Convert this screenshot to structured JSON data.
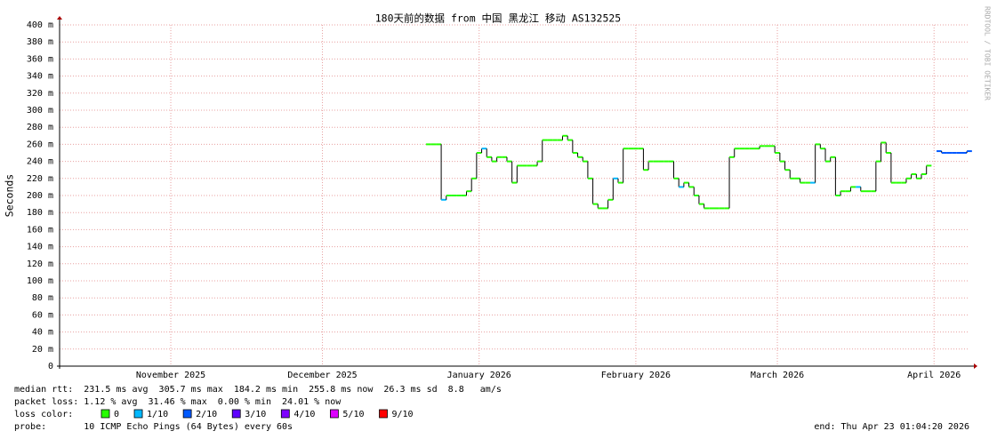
{
  "chart_data": {
    "type": "step",
    "title": "180天前的数据 from 中国 黑龙江 移动 AS132525",
    "y_label": "Seconds",
    "watermark": "RRDTOOL / TOBI OETIKER",
    "xlim": [
      0,
      180
    ],
    "xticks": [
      {
        "value": 22,
        "label": "November 2025"
      },
      {
        "value": 52,
        "label": "December 2025"
      },
      {
        "value": 83,
        "label": "January 2026"
      },
      {
        "value": 114,
        "label": "February 2026"
      },
      {
        "value": 142,
        "label": "March 2026"
      },
      {
        "value": 173,
        "label": "April 2026"
      }
    ],
    "ylim": [
      0,
      400
    ],
    "yticks": [
      0,
      {
        "value": 20,
        "label": "20 m"
      },
      {
        "value": 40,
        "label": "40 m"
      },
      {
        "value": 60,
        "label": "60 m"
      },
      {
        "value": 80,
        "label": "80 m"
      },
      {
        "value": 100,
        "label": "100 m"
      },
      {
        "value": 120,
        "label": "120 m"
      },
      {
        "value": 140,
        "label": "140 m"
      },
      {
        "value": 160,
        "label": "160 m"
      },
      {
        "value": 180,
        "label": "180 m"
      },
      {
        "value": 200,
        "label": "200 m"
      },
      {
        "value": 220,
        "label": "220 m"
      },
      {
        "value": 240,
        "label": "240 m"
      },
      {
        "value": 260,
        "label": "260 m"
      },
      {
        "value": 280,
        "label": "280 m"
      },
      {
        "value": 300,
        "label": "300 m"
      },
      {
        "value": 320,
        "label": "320 m"
      },
      {
        "value": 340,
        "label": "340 m"
      },
      {
        "value": 360,
        "label": "360 m"
      },
      {
        "value": 380,
        "label": "380 m"
      },
      {
        "value": 400,
        "label": "400 m"
      }
    ],
    "grid": true,
    "x": [
      73,
      74,
      75,
      76,
      77,
      78,
      79,
      80,
      81,
      82,
      83,
      84,
      85,
      86,
      87,
      88,
      89,
      90,
      91,
      92,
      93,
      94,
      95,
      96,
      97,
      98,
      99,
      100,
      101,
      102,
      103,
      104,
      105,
      106,
      107,
      108,
      109,
      110,
      111,
      112,
      113,
      114,
      115,
      116,
      117,
      118,
      119,
      120,
      121,
      122,
      123,
      124,
      125,
      126,
      127,
      128,
      129,
      130,
      131,
      132,
      133,
      134,
      135,
      136,
      137,
      138,
      139,
      140,
      141,
      142,
      143,
      144,
      145,
      146,
      147,
      148,
      149,
      150,
      151,
      152,
      153,
      154,
      155,
      156,
      157,
      158,
      159,
      160,
      161,
      162,
      163,
      164,
      165,
      166,
      167,
      168,
      169,
      170,
      171,
      172,
      173,
      174,
      175,
      176,
      177,
      178,
      179,
      180
    ],
    "values": [
      260,
      260,
      260,
      195,
      200,
      200,
      200,
      200,
      205,
      220,
      250,
      255,
      245,
      240,
      245,
      245,
      240,
      215,
      235,
      235,
      235,
      235,
      240,
      265,
      265,
      265,
      265,
      270,
      265,
      250,
      245,
      240,
      220,
      190,
      185,
      185,
      195,
      220,
      215,
      255,
      255,
      255,
      255,
      230,
      240,
      240,
      240,
      240,
      240,
      220,
      210,
      215,
      210,
      200,
      190,
      185,
      185,
      185,
      185,
      185,
      245,
      255,
      255,
      255,
      255,
      255,
      258,
      258,
      258,
      250,
      240,
      230,
      220,
      220,
      215,
      215,
      215,
      260,
      255,
      240,
      245,
      200,
      205,
      205,
      210,
      210,
      205,
      205,
      205,
      240,
      262,
      250,
      215,
      215,
      215,
      220,
      225,
      220,
      225,
      235,
      null,
      252,
      250,
      250,
      250,
      250,
      250,
      252
    ],
    "loss": [
      0,
      0,
      0,
      1,
      0,
      0,
      0,
      0,
      0,
      0,
      0,
      1,
      0,
      0,
      0,
      0,
      0,
      0,
      0,
      0,
      0,
      0,
      0,
      0,
      0,
      0,
      0,
      0,
      0,
      0,
      0,
      0,
      0,
      0,
      0,
      0,
      0,
      1,
      0,
      0,
      0,
      0,
      0,
      0,
      0,
      0,
      0,
      0,
      0,
      0,
      1,
      0,
      0,
      0,
      0,
      0,
      0,
      0,
      0,
      0,
      0,
      0,
      0,
      0,
      0,
      0,
      0,
      0,
      0,
      0,
      0,
      0,
      0,
      0,
      0,
      0,
      1,
      0,
      0,
      0,
      0,
      0,
      0,
      0,
      0,
      1,
      0,
      0,
      0,
      0,
      0,
      0,
      0,
      0,
      0,
      0,
      0,
      0,
      0,
      0,
      0,
      2,
      2,
      2,
      2,
      2,
      2,
      2
    ],
    "loss_legend": {
      "label": "loss color:",
      "items": [
        {
          "name": "0",
          "color": "#26ff00"
        },
        {
          "name": "1/10",
          "color": "#00b8ff"
        },
        {
          "name": "2/10",
          "color": "#0059ff"
        },
        {
          "name": "3/10",
          "color": "#5e00ff"
        },
        {
          "name": "4/10",
          "color": "#7e00ff"
        },
        {
          "name": "5/10",
          "color": "#dd00ff"
        },
        {
          "name": "9/10",
          "color": "#ff0000"
        }
      ]
    },
    "stats": [
      "median rtt:  231.5 ms avg  305.7 ms max  184.2 ms min  255.8 ms now  26.3 ms sd  8.8   am/s",
      "packet loss: 1.12 % avg  31.46 % max  0.00 % min  24.01 % now"
    ],
    "probe": "probe:       10 ICMP Echo Pings (64 Bytes) every 60s",
    "end": "end: Thu Apr 23 01:04:20 2026"
  }
}
